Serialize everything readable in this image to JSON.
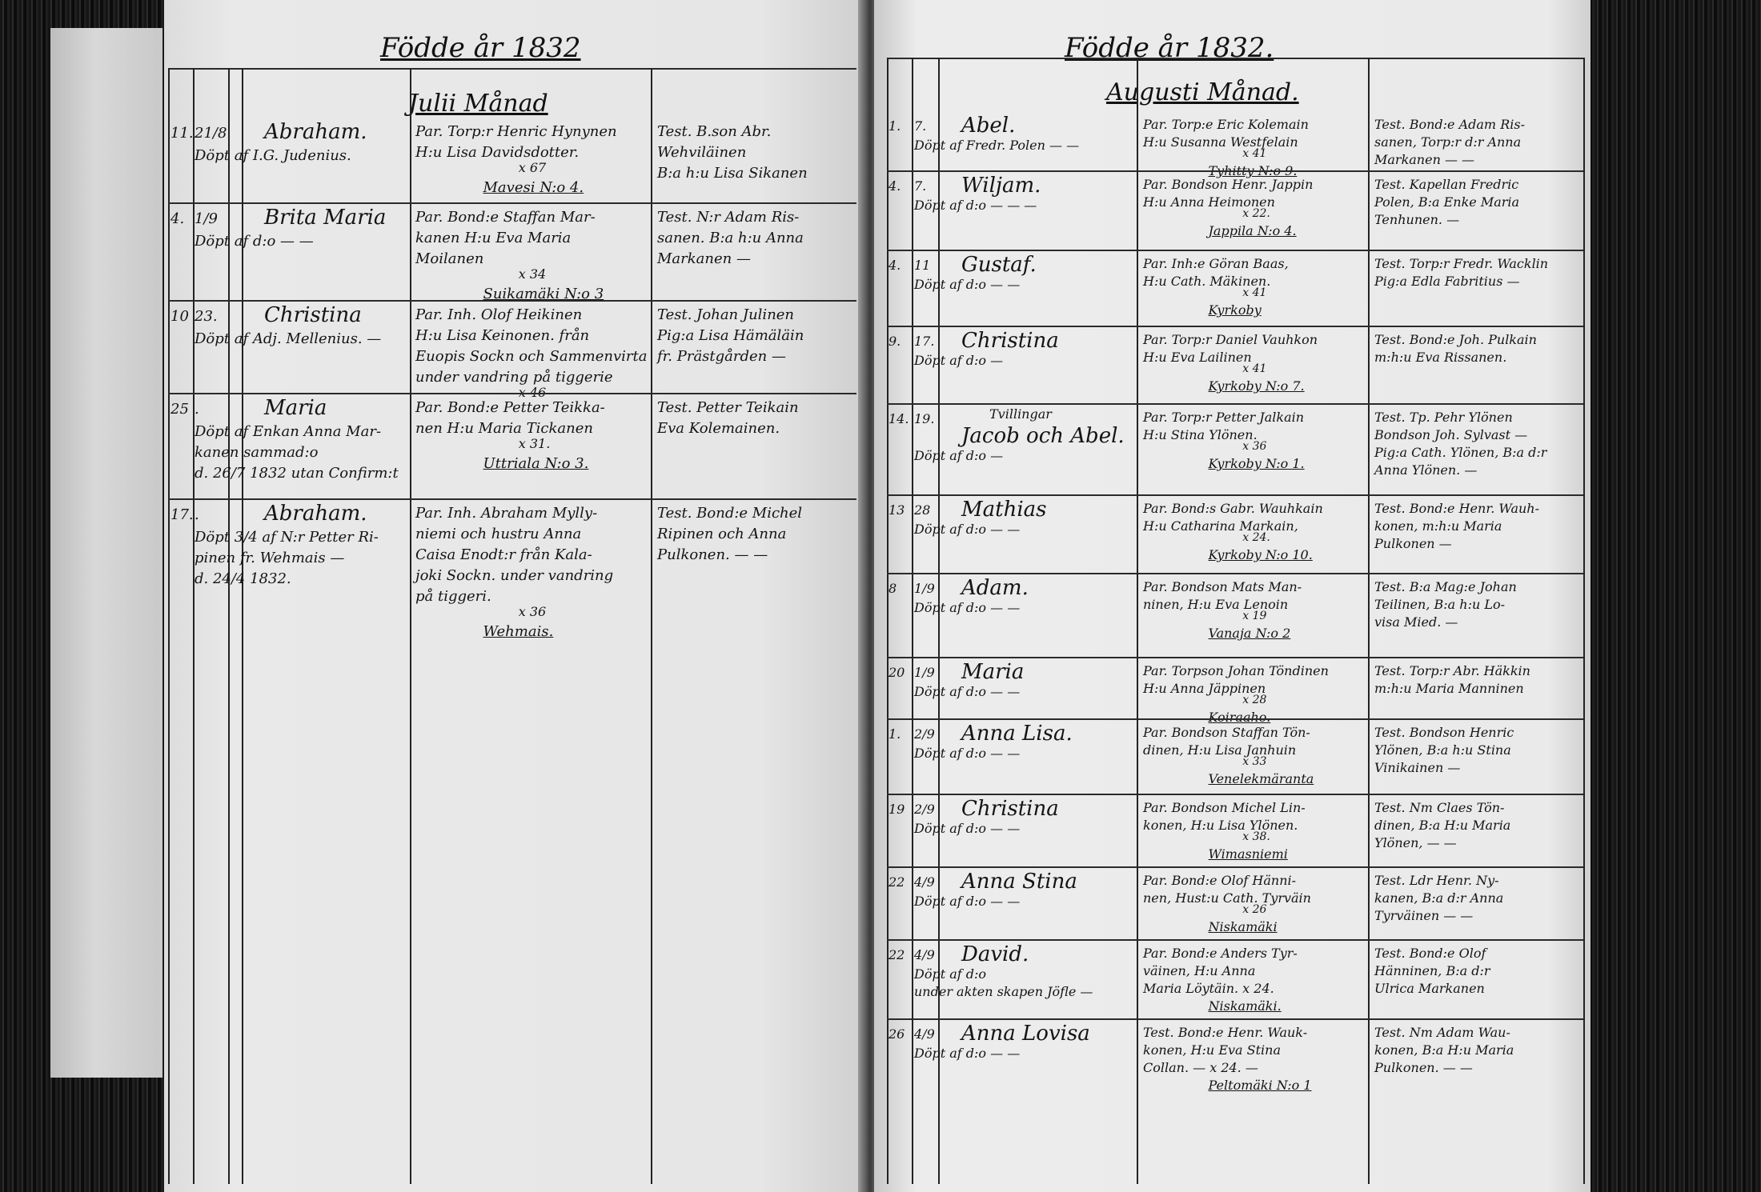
{
  "left_page": {
    "title": "Födde år 1832",
    "month": "Julii Månad",
    "entries": [
      {
        "day": "11.",
        "date": "21/8",
        "name": "Abraham.",
        "note": [
          "Döpt af I.G. Judenius."
        ],
        "parents": [
          "Par. Torp:r Henric Hynynen",
          "H:u Lisa Davidsdotter."
        ],
        "age": "x 67",
        "place": "Mavesi N:o 4.",
        "witnesses": [
          "Test. B.son Abr.",
          "Wehviläinen",
          "B:a h:u Lisa Sikanen"
        ]
      },
      {
        "day": "4.",
        "date": "1/9",
        "name": "Brita Maria",
        "note": [
          "Döpt af d:o — —"
        ],
        "parents": [
          "Par. Bond:e Staffan Mar-",
          "kanen H:u Eva Maria",
          "Moilanen"
        ],
        "age": "x 34",
        "place": "Suikamäki N:o 3",
        "witnesses": [
          "Test. N:r Adam Ris-",
          "sanen. B:a h:u Anna",
          "Markanen —"
        ]
      },
      {
        "day": "10",
        "date": "23.",
        "name": "Christina",
        "note": [
          "Döpt af Adj. Mellenius. —"
        ],
        "parents": [
          "Par. Inh. Olof Heikinen",
          "H:u Lisa Keinonen. från",
          "Euopis Sockn och Sammenvirta",
          "under vandring på tiggerie"
        ],
        "age": "x 46",
        "place": "",
        "witnesses": [
          "Test. Johan Julinen",
          "Pig:a Lisa Hämäläin",
          "fr. Prästgården —"
        ]
      },
      {
        "day": "25",
        "date": ".",
        "name": "Maria",
        "note": [
          "Döpt af Enkan Anna Mar-",
          "kanen sammad:o",
          "d. 26/7 1832 utan Confirm:t"
        ],
        "parents": [
          "Par. Bond:e Petter Teikka-",
          "nen H:u Maria Tickanen"
        ],
        "age": "x 31.",
        "place": "Uttriala N:o 3.",
        "witnesses": [
          "Test. Petter Teikain",
          "Eva Kolemainen."
        ]
      },
      {
        "day": "17.",
        "date": ".",
        "name": "Abraham.",
        "note": [
          "Döpt 3/4 af N:r Petter Ri-",
          "pinen fr. Wehmais —",
          "d. 24/4 1832."
        ],
        "parents": [
          "Par. Inh. Abraham Mylly-",
          "niemi och hustru Anna",
          "Caisa Enodt:r från Kala-",
          "joki Sockn. under vandring",
          "på tiggeri."
        ],
        "age": "x 36",
        "place": "Wehmais.",
        "witnesses": [
          "Test. Bond:e Michel",
          "Ripinen och Anna",
          "Pulkonen. — —"
        ]
      }
    ]
  },
  "right_page": {
    "title": "Födde år 1832.",
    "month": "Augusti Månad.",
    "entries": [
      {
        "day": "1.",
        "date": "7.",
        "name": "Abel.",
        "note": [
          "Döpt af Fredr. Polen — —"
        ],
        "parents": [
          "Par. Torp:e Eric Kolemain",
          "H:u Susanna Westfelain"
        ],
        "age": "x 41",
        "place": "Tyhitty N:o 9.",
        "witnesses": [
          "Test. Bond:e Adam Ris-",
          "sanen, Torp:r d:r Anna",
          "Markanen — —"
        ]
      },
      {
        "day": "4.",
        "date": "7.",
        "name": "Wiljam.",
        "note": [
          "Döpt af d:o — — —"
        ],
        "parents": [
          "Par. Bondson Henr. Jappin",
          "H:u Anna Heimonen"
        ],
        "age": "x 22.",
        "place": "Jappila N:o 4.",
        "witnesses": [
          "Test. Kapellan Fredric",
          "Polen, B:a Enke Maria",
          "Tenhunen. —"
        ]
      },
      {
        "day": "4.",
        "date": "11",
        "name": "Gustaf.",
        "note": [
          "Döpt af d:o — —"
        ],
        "parents": [
          "Par. Inh:e Göran Baas,",
          "H:u Cath. Mäkinen."
        ],
        "age": "x 41",
        "place": "Kyrkoby",
        "witnesses": [
          "Test. Torp:r Fredr. Wacklin",
          "Pig:a Edla Fabritius —"
        ]
      },
      {
        "day": "9.",
        "date": "17.",
        "name": "Christina",
        "note": [
          "Döpt af d:o —"
        ],
        "parents": [
          "Par. Torp:r Daniel Vauhkon",
          "H:u Eva Lailinen"
        ],
        "age": "x 41",
        "place": "Kyrkoby N:o 7.",
        "witnesses": [
          "Test. Bond:e Joh. Pulkain",
          "m:h:u Eva Rissanen."
        ]
      },
      {
        "day": "14.",
        "date": "19.",
        "prefix": "Tvillingar",
        "name": "Jacob och Abel.",
        "note": [
          "Döpt af d:o —"
        ],
        "parents": [
          "Par. Torp:r Petter Jalkain",
          "H:u Stina Ylönen."
        ],
        "age": "x 36",
        "place": "Kyrkoby N:o 1.",
        "witnesses": [
          "Test. Tp. Pehr Ylönen",
          "Bondson Joh. Sylvast —",
          "Pig:a Cath. Ylönen, B:a d:r",
          "Anna Ylönen. —"
        ]
      },
      {
        "day": "13",
        "date": "28",
        "name": "Mathias",
        "note": [
          "Döpt af d:o — —"
        ],
        "parents": [
          "Par. Bond:s Gabr. Wauhkain",
          "H:u Catharina Markain,"
        ],
        "age": "x 24.",
        "place": "Kyrkoby N:o 10.",
        "witnesses": [
          "Test. Bond:e Henr. Wauh-",
          "konen, m:h:u Maria",
          "Pulkonen —"
        ]
      },
      {
        "day": "8",
        "date": "1/9",
        "name": "Adam.",
        "note": [
          "Döpt af d:o — —"
        ],
        "parents": [
          "Par. Bondson Mats Man-",
          "ninen, H:u Eva Lenoin"
        ],
        "age": "x 19",
        "place": "Vanaja N:o 2",
        "witnesses": [
          "Test. B:a Mag:e Johan",
          "Teilinen, B:a h:u Lo-",
          "visa Mied. —"
        ]
      },
      {
        "day": "20",
        "date": "1/9",
        "name": "Maria",
        "note": [
          "Döpt af d:o — —"
        ],
        "parents": [
          "Par. Torpson Johan Töndinen",
          "H:u Anna Jäppinen"
        ],
        "age": "x 28",
        "place": "Koiraaho.",
        "witnesses": [
          "Test. Torp:r Abr. Häkkin",
          "m:h:u Maria Manninen"
        ]
      },
      {
        "day": "1.",
        "date": "2/9",
        "name": "Anna Lisa.",
        "note": [
          "Döpt af d:o — —"
        ],
        "parents": [
          "Par. Bondson Staffan Tön-",
          "dinen, H:u Lisa Janhuin"
        ],
        "age": "x 33",
        "place": "Venelekmäranta",
        "witnesses": [
          "Test. Bondson Henric",
          "Ylönen, B:a h:u Stina",
          "Vinikainen —"
        ]
      },
      {
        "day": "19",
        "date": "2/9",
        "name": "Christina",
        "note": [
          "Döpt af d:o — —"
        ],
        "parents": [
          "Par. Bondson Michel Lin-",
          "konen, H:u Lisa Ylönen."
        ],
        "age": "x 38.",
        "place": "Wimasniemi",
        "witnesses": [
          "Test. Nm Claes Tön-",
          "dinen, B:a H:u Maria",
          "Ylönen, — —"
        ]
      },
      {
        "day": "22",
        "date": "4/9",
        "name": "Anna Stina",
        "note": [
          "Döpt af d:o — —"
        ],
        "parents": [
          "Par. Bond:e Olof Hänni-",
          "nen, Hust:u Cath. Tyrväin"
        ],
        "age": "x 26",
        "place": "Niskamäki",
        "witnesses": [
          "Test. Ldr Henr. Ny-",
          "kanen, B:a d:r Anna",
          "Tyrväinen — —"
        ]
      },
      {
        "day": "22",
        "date": "4/9",
        "name": "David.",
        "note": [
          "Döpt af d:o",
          "under akten skapen Jöfle —"
        ],
        "parents": [
          "Par. Bond:e Anders Tyr-",
          "väinen, H:u Anna",
          "Maria Löytäin. x 24."
        ],
        "age": "",
        "place": "Niskamäki.",
        "witnesses": [
          "Test. Bond:e Olof",
          "Hänninen, B:a d:r",
          "Ulrica Markanen"
        ]
      },
      {
        "day": "26",
        "date": "4/9",
        "name": "Anna Lovisa",
        "note": [
          "Döpt af d:o — —"
        ],
        "parents": [
          "Test. Bond:e Henr. Wauk-",
          "konen, H:u Eva Stina",
          "Collan. — x 24. —"
        ],
        "age": "",
        "place": "Peltomäki N:o 1",
        "witnesses": [
          "Test. Nm Adam Wau-",
          "konen, B:a H:u Maria",
          "Pulkonen. — —"
        ]
      }
    ]
  }
}
